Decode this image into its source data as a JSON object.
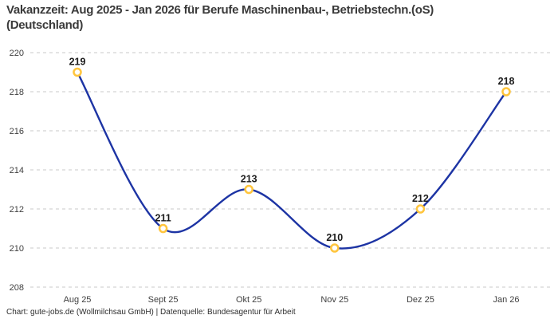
{
  "page": {
    "title_lines": [
      "Vakanzzeit: Aug 2025 - Jan 2026 für Berufe Maschinenbau-, Betriebstechn.(oS)",
      "(Deutschland)"
    ],
    "footer": "Chart: gute-jobs.de (Wollmilchsau GmbH) | Datenquelle: Bundesagentur für Arbeit"
  },
  "chart_data": {
    "type": "line",
    "title": "Vakanzzeit: Aug 2025 - Jan 2026 für Berufe Maschinenbau-, Betriebstechn.(oS) (Deutschland)",
    "categories": [
      "Aug 25",
      "Sept 25",
      "Okt 25",
      "Nov 25",
      "Dez 25",
      "Jan 26"
    ],
    "values": [
      219,
      211,
      213,
      210,
      212,
      218
    ],
    "data_labels": [
      "219",
      "211",
      "213",
      "210",
      "212",
      "218"
    ],
    "ylim": [
      208,
      220
    ],
    "ytick_step": 2,
    "ytick_labels": [
      "208",
      "210",
      "212",
      "214",
      "216",
      "218",
      "220"
    ],
    "smooth": true,
    "grid": "horizontal-dashed",
    "legend": "none",
    "xlabel": "",
    "ylabel": "",
    "colors": {
      "line": "#1d34a4",
      "marker_ring": "#ffc53d",
      "marker_fill": "#ffffff",
      "grid": "#c9c9c9",
      "axis_text": "#3f3f3f",
      "data_label": "#1b1b1b",
      "title": "#3a3a3a",
      "background": "#ffffff"
    }
  }
}
